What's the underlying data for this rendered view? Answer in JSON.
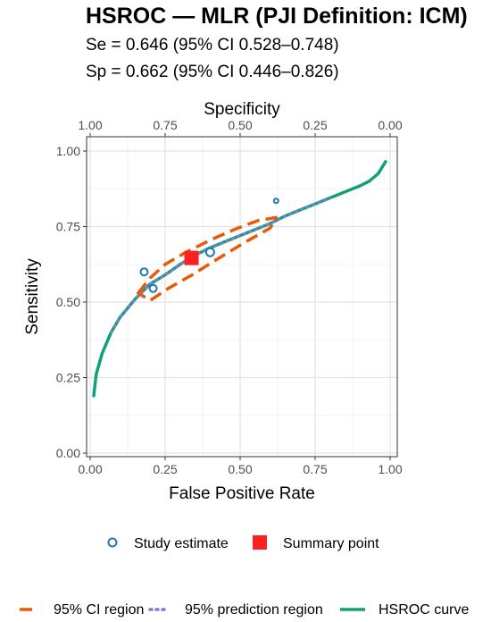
{
  "title": "HSROC — MLR (PJI Definition: ICM)",
  "subtitle_se": "Se = 0.646 (95% CI 0.528–0.748)",
  "subtitle_sp": "Sp = 0.662 (95% CI 0.446–0.826)",
  "chart_data": {
    "type": "scatter",
    "xlabel": "False Positive Rate",
    "ylabel": "Sensitivity",
    "x2label": "Specificity",
    "xlim": [
      0,
      1
    ],
    "ylim": [
      0,
      1
    ],
    "x_ticks": [
      "0.00",
      "0.25",
      "0.50",
      "0.75",
      "1.00"
    ],
    "y_ticks": [
      "0.00",
      "0.25",
      "0.50",
      "0.75",
      "1.00"
    ],
    "x2_ticks": [
      "1.00",
      "0.75",
      "0.50",
      "0.25",
      "0.00"
    ],
    "grid": true,
    "study_estimates": [
      {
        "fpr": 0.18,
        "sens": 0.6
      },
      {
        "fpr": 0.21,
        "sens": 0.545
      },
      {
        "fpr": 0.4,
        "sens": 0.665
      },
      {
        "fpr": 0.62,
        "sens": 0.835
      }
    ],
    "summary_point": {
      "fpr": 0.338,
      "sens": 0.646
    },
    "hsroc_curve": [
      [
        0.012,
        0.19
      ],
      [
        0.02,
        0.26
      ],
      [
        0.04,
        0.33
      ],
      [
        0.07,
        0.4
      ],
      [
        0.1,
        0.45
      ],
      [
        0.15,
        0.51
      ],
      [
        0.2,
        0.56
      ],
      [
        0.25,
        0.59
      ],
      [
        0.3,
        0.625
      ],
      [
        0.35,
        0.655
      ],
      [
        0.4,
        0.68
      ],
      [
        0.45,
        0.7
      ],
      [
        0.5,
        0.72
      ],
      [
        0.55,
        0.74
      ],
      [
        0.6,
        0.76
      ],
      [
        0.65,
        0.785
      ],
      [
        0.7,
        0.805
      ],
      [
        0.75,
        0.825
      ],
      [
        0.8,
        0.845
      ],
      [
        0.85,
        0.865
      ],
      [
        0.9,
        0.885
      ],
      [
        0.93,
        0.9
      ],
      [
        0.96,
        0.925
      ],
      [
        0.985,
        0.965
      ]
    ],
    "prediction_region": [
      [
        0.07,
        0.4
      ],
      [
        0.1,
        0.45
      ],
      [
        0.15,
        0.51
      ],
      [
        0.2,
        0.56
      ],
      [
        0.25,
        0.59
      ],
      [
        0.3,
        0.625
      ],
      [
        0.35,
        0.655
      ],
      [
        0.4,
        0.68
      ],
      [
        0.45,
        0.7
      ],
      [
        0.5,
        0.72
      ],
      [
        0.55,
        0.74
      ],
      [
        0.6,
        0.76
      ],
      [
        0.65,
        0.785
      ],
      [
        0.7,
        0.805
      ],
      [
        0.75,
        0.825
      ],
      [
        0.8,
        0.845
      ]
    ],
    "ci_region": [
      [
        0.16,
        0.53
      ],
      [
        0.2,
        0.58
      ],
      [
        0.25,
        0.625
      ],
      [
        0.32,
        0.665
      ],
      [
        0.4,
        0.705
      ],
      [
        0.48,
        0.74
      ],
      [
        0.56,
        0.77
      ],
      [
        0.62,
        0.78
      ],
      [
        0.6,
        0.745
      ],
      [
        0.52,
        0.7
      ],
      [
        0.42,
        0.64
      ],
      [
        0.34,
        0.59
      ],
      [
        0.26,
        0.545
      ],
      [
        0.2,
        0.505
      ],
      [
        0.16,
        0.53
      ]
    ],
    "colors": {
      "study": "#1f77b4",
      "summary": "#ff2020",
      "ci": "#e8590c",
      "prediction": "#8878d0",
      "hsroc": "#12a07a"
    },
    "legend": {
      "row1": [
        "Study estimate",
        "Summary point"
      ],
      "row2": [
        "95% CI region",
        "95% prediction region",
        "HSROC curve"
      ]
    }
  }
}
